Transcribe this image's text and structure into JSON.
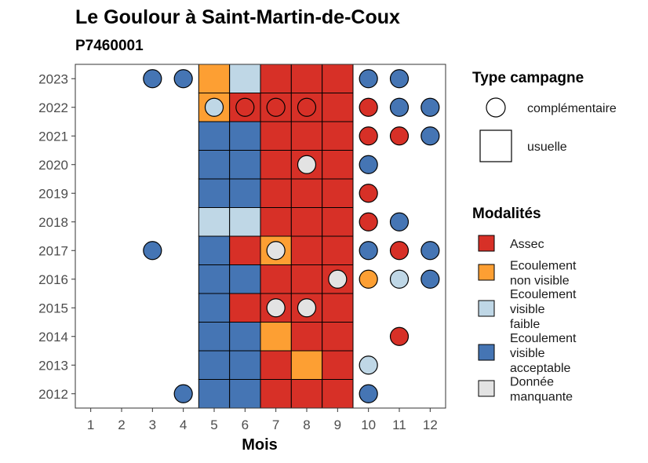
{
  "chart_data": {
    "type": "heatmap",
    "title": "Le Goulour à Saint-Martin-de-Coux",
    "subtitle": "P7460001",
    "xlabel": "Mois",
    "ylabel": "",
    "x_ticks": [
      "1",
      "2",
      "3",
      "4",
      "5",
      "6",
      "7",
      "8",
      "9",
      "10",
      "11",
      "12"
    ],
    "y_ticks": [
      "2012",
      "2013",
      "2014",
      "2015",
      "2016",
      "2017",
      "2018",
      "2019",
      "2020",
      "2021",
      "2022",
      "2023"
    ],
    "xlim": [
      0.5,
      12.5
    ],
    "ylim": [
      2011.5,
      2023.5
    ],
    "usual_months": [
      5,
      9
    ],
    "colors": {
      "assec": "#d73027",
      "ecoulement_non_visible": "#fd9f33",
      "ecoulement_visible_faible": "#bfd7e6",
      "ecoulement_visible_acceptable": "#4575b4",
      "donnee_manquante": "#e3e3e3"
    },
    "legend_type": {
      "title": "Type campagne",
      "items": [
        {
          "key": "complementaire",
          "label": "complémentaire",
          "shape": "circle"
        },
        {
          "key": "usuelle",
          "label": "usuelle",
          "shape": "square"
        }
      ]
    },
    "legend_modalites": {
      "title": "Modalités",
      "items": [
        {
          "key": "assec",
          "lines": [
            "Assec"
          ]
        },
        {
          "key": "ecoulement_non_visible",
          "lines": [
            "Ecoulement",
            "non visible"
          ]
        },
        {
          "key": "ecoulement_visible_faible",
          "lines": [
            "Ecoulement",
            "visible",
            "faible"
          ]
        },
        {
          "key": "ecoulement_visible_acceptable",
          "lines": [
            "Ecoulement",
            "visible",
            "acceptable"
          ]
        },
        {
          "key": "donnee_manquante",
          "lines": [
            "Donnée",
            "manquante"
          ]
        }
      ]
    },
    "usuelle": [
      {
        "year": 2023,
        "values": [
          "ecoulement_non_visible",
          "ecoulement_visible_faible",
          "assec",
          "assec",
          "assec"
        ]
      },
      {
        "year": 2022,
        "values": [
          "ecoulement_non_visible",
          "assec",
          "assec",
          "assec",
          "assec"
        ]
      },
      {
        "year": 2021,
        "values": [
          "ecoulement_visible_acceptable",
          "ecoulement_visible_acceptable",
          "assec",
          "assec",
          "assec"
        ]
      },
      {
        "year": 2020,
        "values": [
          "ecoulement_visible_acceptable",
          "ecoulement_visible_acceptable",
          "assec",
          "assec",
          "assec"
        ]
      },
      {
        "year": 2019,
        "values": [
          "ecoulement_visible_acceptable",
          "ecoulement_visible_acceptable",
          "assec",
          "assec",
          "assec"
        ]
      },
      {
        "year": 2018,
        "values": [
          "ecoulement_visible_faible",
          "ecoulement_visible_faible",
          "assec",
          "assec",
          "assec"
        ]
      },
      {
        "year": 2017,
        "values": [
          "ecoulement_visible_acceptable",
          "assec",
          "ecoulement_non_visible",
          "assec",
          "assec"
        ]
      },
      {
        "year": 2016,
        "values": [
          "ecoulement_visible_acceptable",
          "ecoulement_visible_acceptable",
          "assec",
          "assec",
          "assec"
        ]
      },
      {
        "year": 2015,
        "values": [
          "ecoulement_visible_acceptable",
          "assec",
          "assec",
          "assec",
          "assec"
        ]
      },
      {
        "year": 2014,
        "values": [
          "ecoulement_visible_acceptable",
          "ecoulement_visible_acceptable",
          "ecoulement_non_visible",
          "assec",
          "assec"
        ]
      },
      {
        "year": 2013,
        "values": [
          "ecoulement_visible_acceptable",
          "ecoulement_visible_acceptable",
          "assec",
          "ecoulement_non_visible",
          "assec"
        ]
      },
      {
        "year": 2012,
        "values": [
          "ecoulement_visible_acceptable",
          "ecoulement_visible_acceptable",
          "assec",
          "assec",
          "assec"
        ]
      }
    ],
    "complementaire": [
      {
        "year": 2023,
        "month": 3,
        "value": "ecoulement_visible_acceptable"
      },
      {
        "year": 2023,
        "month": 4,
        "value": "ecoulement_visible_acceptable"
      },
      {
        "year": 2023,
        "month": 10,
        "value": "ecoulement_visible_acceptable"
      },
      {
        "year": 2023,
        "month": 11,
        "value": "ecoulement_visible_acceptable"
      },
      {
        "year": 2022,
        "month": 5,
        "value": "ecoulement_visible_faible"
      },
      {
        "year": 2022,
        "month": 6,
        "value": "assec"
      },
      {
        "year": 2022,
        "month": 7,
        "value": "assec"
      },
      {
        "year": 2022,
        "month": 8,
        "value": "assec"
      },
      {
        "year": 2022,
        "month": 10,
        "value": "assec"
      },
      {
        "year": 2022,
        "month": 11,
        "value": "ecoulement_visible_acceptable"
      },
      {
        "year": 2022,
        "month": 12,
        "value": "ecoulement_visible_acceptable"
      },
      {
        "year": 2021,
        "month": 10,
        "value": "assec"
      },
      {
        "year": 2021,
        "month": 11,
        "value": "assec"
      },
      {
        "year": 2021,
        "month": 12,
        "value": "ecoulement_visible_acceptable"
      },
      {
        "year": 2020,
        "month": 8,
        "value": "donnee_manquante"
      },
      {
        "year": 2020,
        "month": 10,
        "value": "ecoulement_visible_acceptable"
      },
      {
        "year": 2019,
        "month": 10,
        "value": "assec"
      },
      {
        "year": 2018,
        "month": 10,
        "value": "assec"
      },
      {
        "year": 2018,
        "month": 11,
        "value": "ecoulement_visible_acceptable"
      },
      {
        "year": 2017,
        "month": 3,
        "value": "ecoulement_visible_acceptable"
      },
      {
        "year": 2017,
        "month": 7,
        "value": "donnee_manquante"
      },
      {
        "year": 2017,
        "month": 10,
        "value": "ecoulement_visible_acceptable"
      },
      {
        "year": 2017,
        "month": 11,
        "value": "assec"
      },
      {
        "year": 2017,
        "month": 12,
        "value": "ecoulement_visible_acceptable"
      },
      {
        "year": 2016,
        "month": 9,
        "value": "donnee_manquante"
      },
      {
        "year": 2016,
        "month": 10,
        "value": "ecoulement_non_visible"
      },
      {
        "year": 2016,
        "month": 11,
        "value": "ecoulement_visible_faible"
      },
      {
        "year": 2016,
        "month": 12,
        "value": "ecoulement_visible_acceptable"
      },
      {
        "year": 2015,
        "month": 7,
        "value": "donnee_manquante"
      },
      {
        "year": 2015,
        "month": 8,
        "value": "donnee_manquante"
      },
      {
        "year": 2014,
        "month": 11,
        "value": "assec"
      },
      {
        "year": 2013,
        "month": 10,
        "value": "ecoulement_visible_faible"
      },
      {
        "year": 2012,
        "month": 4,
        "value": "ecoulement_visible_acceptable"
      },
      {
        "year": 2012,
        "month": 10,
        "value": "ecoulement_visible_acceptable"
      }
    ]
  }
}
